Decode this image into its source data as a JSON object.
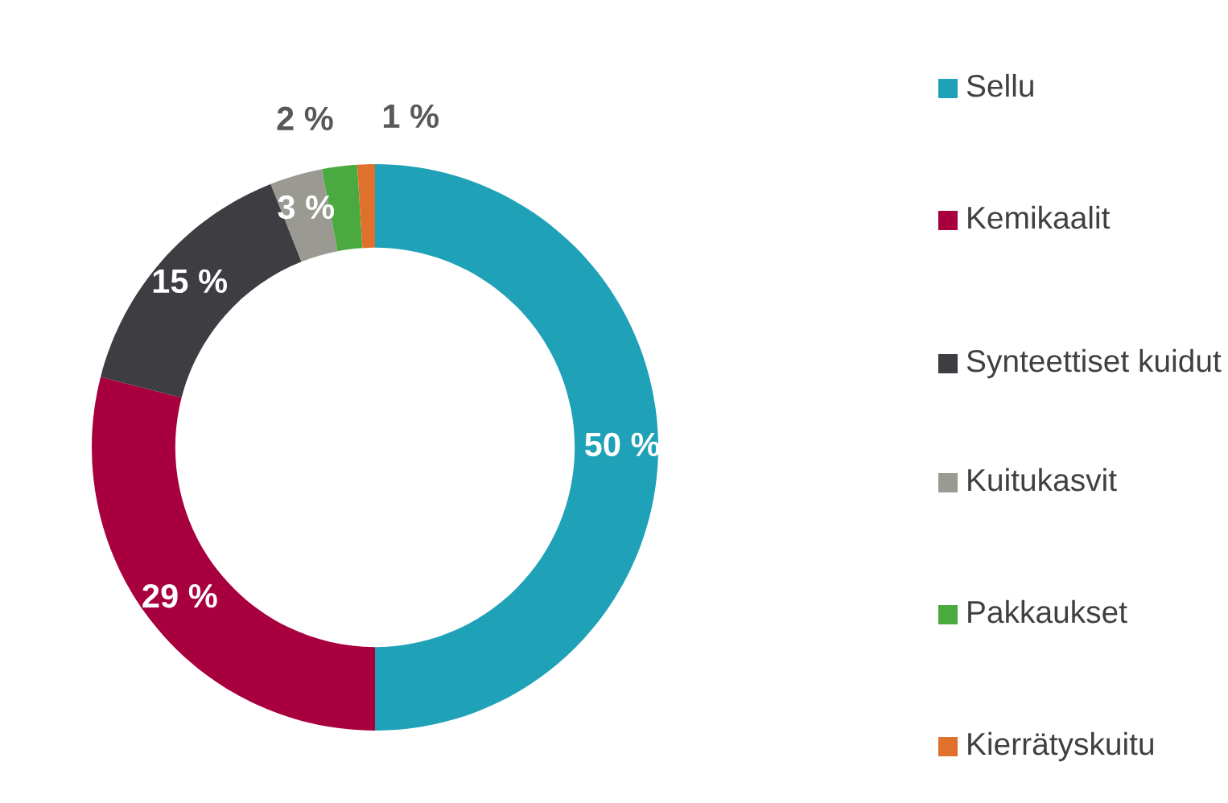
{
  "chart_data": {
    "type": "donut",
    "categories": [
      "Sellu",
      "Kemikaalit",
      "Synteettiset kuidut",
      "Kuitukasvit",
      "Pakkaukset",
      "Kierrätyskuitu"
    ],
    "values": [
      50,
      29,
      15,
      3,
      2,
      1
    ],
    "colors": [
      "#1fa1b8",
      "#a8003f",
      "#3d3d42",
      "#9a9a92",
      "#4aa93f",
      "#e0712c"
    ],
    "value_labels": [
      "50 %",
      "29 %",
      "15 %",
      "3 %",
      "2 %",
      "1 %"
    ],
    "legend": "right"
  }
}
